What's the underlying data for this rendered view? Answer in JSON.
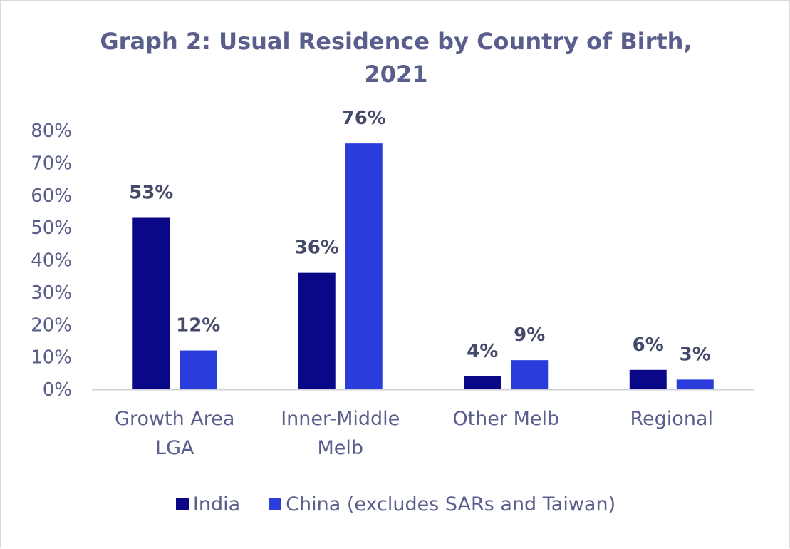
{
  "chart_data": {
    "type": "bar",
    "title": "Graph 2: Usual Residence by Country of Birth, 2021",
    "categories": [
      [
        "Growth Area",
        "LGA"
      ],
      [
        "Inner-Middle",
        "Melb"
      ],
      [
        "Other Melb"
      ],
      [
        "Regional"
      ]
    ],
    "series": [
      {
        "name": "India",
        "color": "#0b0888",
        "values": [
          53,
          36,
          4,
          6
        ],
        "labels": [
          "53%",
          "36%",
          "4%",
          "6%"
        ]
      },
      {
        "name": "China (excludes SARs and Taiwan)",
        "color": "#2b3cdc",
        "values": [
          12,
          76,
          9,
          3
        ],
        "labels": [
          "12%",
          "76%",
          "9%",
          "3%"
        ]
      }
    ],
    "ylim": [
      0,
      80
    ],
    "yticks": [
      "0%",
      "10%",
      "20%",
      "30%",
      "40%",
      "50%",
      "60%",
      "70%",
      "80%"
    ],
    "xlabel": "",
    "ylabel": "",
    "legend_position": "bottom",
    "grid": false
  }
}
